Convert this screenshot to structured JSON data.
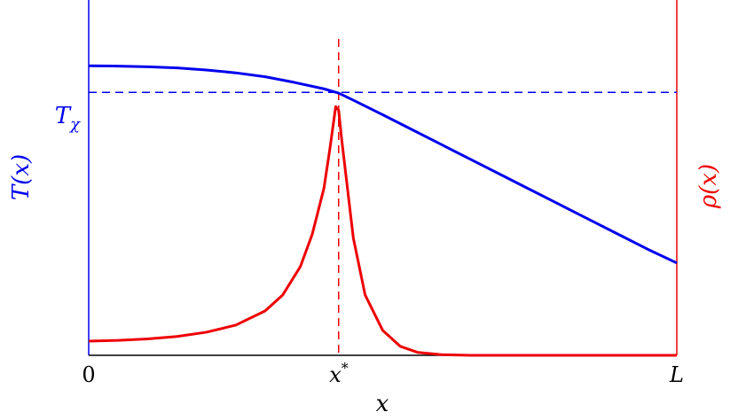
{
  "chart_data": {
    "type": "line",
    "xlabel": "x",
    "ylabel_left": "T(x)",
    "ylabel_right": "ρ(x)",
    "x_ticks": [
      {
        "label": "0",
        "value": 0.0
      },
      {
        "label": "x*",
        "value": 0.425
      },
      {
        "label": "L",
        "value": 1.0
      }
    ],
    "y_ticks_left": [
      {
        "label": "Tχ",
        "value": 0.74
      }
    ],
    "xlim": [
      0,
      1
    ],
    "ylim": [
      0,
      1
    ],
    "grid": false,
    "colors": {
      "T": "#0000ee",
      "rho": "#ee0000",
      "axis": "#000000"
    },
    "series": [
      {
        "key": "T",
        "x": [
          0.0,
          0.05,
          0.1,
          0.15,
          0.2,
          0.25,
          0.3,
          0.35,
          0.4,
          0.425,
          0.45,
          0.5,
          0.55,
          0.6,
          0.65,
          0.7,
          0.75,
          0.8,
          0.85,
          0.9,
          0.95,
          1.0
        ],
        "y": [
          0.815,
          0.814,
          0.812,
          0.809,
          0.803,
          0.795,
          0.784,
          0.768,
          0.75,
          0.738,
          0.718,
          0.677,
          0.635,
          0.593,
          0.551,
          0.509,
          0.467,
          0.425,
          0.383,
          0.341,
          0.299,
          0.26
        ]
      },
      {
        "key": "rho",
        "x": [
          0.0,
          0.05,
          0.1,
          0.15,
          0.2,
          0.25,
          0.3,
          0.33,
          0.36,
          0.38,
          0.4,
          0.41,
          0.42,
          0.425,
          0.43,
          0.44,
          0.45,
          0.47,
          0.5,
          0.53,
          0.56,
          0.6,
          0.65,
          0.7,
          0.8,
          0.9,
          1.0
        ],
        "y": [
          0.04,
          0.042,
          0.046,
          0.053,
          0.065,
          0.085,
          0.125,
          0.17,
          0.25,
          0.34,
          0.47,
          0.58,
          0.7,
          0.69,
          0.61,
          0.47,
          0.33,
          0.17,
          0.07,
          0.025,
          0.008,
          0.002,
          0.0,
          0.0,
          0.0,
          0.0,
          0.0
        ]
      }
    ],
    "reference_lines": [
      {
        "key": "vertical",
        "orientation": "vertical",
        "value": 0.425
      },
      {
        "key": "horizontal",
        "orientation": "horizontal",
        "value": 0.74
      }
    ]
  }
}
